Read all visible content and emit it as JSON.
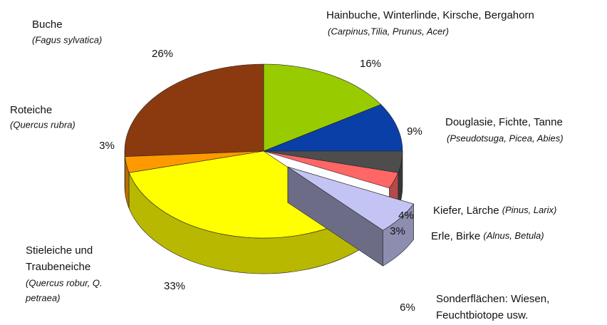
{
  "chart_data": {
    "type": "pie3d",
    "slices": [
      {
        "name": [
          "Hainbuche, Winterlinde, Kirsche, Bergahorn"
        ],
        "latin": [
          "(Carpinus,Tilia, Prunus, Acer)"
        ],
        "value": 16,
        "value_label": "16%",
        "color": "#99cc00"
      },
      {
        "name": [
          "Douglasie, Fichte, Tanne"
        ],
        "latin": [
          "(Pseudotsuga, Picea, Abies)"
        ],
        "value": 9,
        "value_label": "9%",
        "color": "#0a3fa8"
      },
      {
        "name": [
          "Kiefer, Lärche"
        ],
        "latin": [
          "(Pinus, Larix)"
        ],
        "value": 4,
        "value_label": "4%",
        "color": "#4d4d4d"
      },
      {
        "name": [
          "Erle, Birke"
        ],
        "latin": [
          "(Alnus, Betula)"
        ],
        "value": 3,
        "value_label": "3%",
        "color": "#ff6666"
      },
      {
        "name": [
          "Sonderflächen: Wiesen,",
          "Feuchtbiotope usw."
        ],
        "latin": [],
        "value": 6,
        "value_label": "6%",
        "color": "#c4c4f4",
        "exploded": true
      },
      {
        "name": [
          "Stieleiche und",
          "Traubeneiche"
        ],
        "latin": [
          "(Quercus robur, Q.",
          "petraea)"
        ],
        "value": 33,
        "value_label": "33%",
        "color": "#ffff00"
      },
      {
        "name": [
          "Roteiche"
        ],
        "latin": [
          "(Quercus rubra)"
        ],
        "value": 3,
        "value_label": "3%",
        "color": "#ff9900"
      },
      {
        "name": [
          "Buche"
        ],
        "latin": [
          "(Fagus sylvatica)"
        ],
        "value": 26,
        "value_label": "26%",
        "color": "#8b3a0f"
      }
    ]
  }
}
